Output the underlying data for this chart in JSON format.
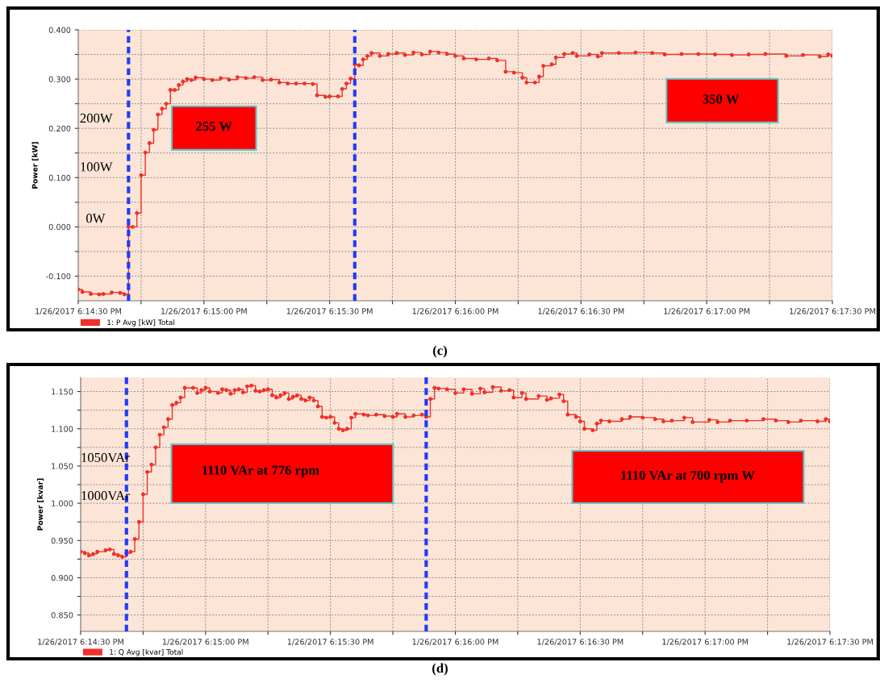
{
  "chart_data": [
    {
      "type": "step",
      "title": "(c)",
      "ylabel": "Power [kW]",
      "marker": "circle",
      "line_style": "solid",
      "grid": true,
      "legend": "bottom left",
      "xlim": [
        "2017-01-26T18:14:30",
        "2017-01-26T18:17:30"
      ],
      "xticks": [
        {
          "value": "2017-01-26T18:14:30",
          "label": "1/26/2017 6:14:30 PM"
        },
        {
          "value": "2017-01-26T18:14:45",
          "label": null
        },
        {
          "value": "2017-01-26T18:15:00",
          "label": "1/26/2017 6:15:00 PM"
        },
        {
          "value": "2017-01-26T18:15:15",
          "label": null
        },
        {
          "value": "2017-01-26T18:15:30",
          "label": "1/26/2017 6:15:30 PM"
        },
        {
          "value": "2017-01-26T18:15:45",
          "label": null
        },
        {
          "value": "2017-01-26T18:16:00",
          "label": "1/26/2017 6:16:00 PM"
        },
        {
          "value": "2017-01-26T18:16:15",
          "label": null
        },
        {
          "value": "2017-01-26T18:16:30",
          "label": "1/26/2017 6:16:30 PM"
        },
        {
          "value": "2017-01-26T18:16:45",
          "label": null
        },
        {
          "value": "2017-01-26T18:17:00",
          "label": "1/26/2017 6:17:00 PM"
        },
        {
          "value": "2017-01-26T18:17:15",
          "label": null
        },
        {
          "value": "2017-01-26T18:17:30",
          "label": "1/26/2017 6:17:30 PM"
        }
      ],
      "ylim": [
        -0.15,
        0.4
      ],
      "yticks": [
        {
          "value": -0.1,
          "label": "-0.100"
        },
        {
          "value": -0.05,
          "label": null
        },
        {
          "value": 0.0,
          "label": "0.000"
        },
        {
          "value": 0.05,
          "label": null
        },
        {
          "value": 0.1,
          "label": "0.100"
        },
        {
          "value": 0.15,
          "label": null
        },
        {
          "value": 0.2,
          "label": "0.200"
        },
        {
          "value": 0.25,
          "label": null
        },
        {
          "value": 0.3,
          "label": "0.300"
        },
        {
          "value": 0.35,
          "label": null
        },
        {
          "value": 0.4,
          "label": "0.400"
        }
      ],
      "ref_lines": [
        {
          "axis": "x",
          "value": "2017-01-26T18:14:42",
          "color": "#1f3bff",
          "line_style": "dashed"
        },
        {
          "axis": "x",
          "value": "2017-01-26T18:15:36",
          "color": "#1f3bff",
          "line_style": "dashed"
        }
      ],
      "annotations": [
        "200W",
        "100W",
        "0W",
        "255 W",
        "350 W"
      ],
      "series": [
        {
          "name": "1: P Avg [kW] Total",
          "color": "#f0302a",
          "x": [
            "2017-01-26T18:14:30",
            "2017-01-26T18:14:31",
            "2017-01-26T18:14:33",
            "2017-01-26T18:14:35",
            "2017-01-26T18:14:36",
            "2017-01-26T18:14:38",
            "2017-01-26T18:14:40",
            "2017-01-26T18:14:41",
            "2017-01-26T18:14:42",
            "2017-01-26T18:14:43",
            "2017-01-26T18:14:44",
            "2017-01-26T18:14:45",
            "2017-01-26T18:14:46",
            "2017-01-26T18:14:47",
            "2017-01-26T18:14:48",
            "2017-01-26T18:14:49",
            "2017-01-26T18:14:50",
            "2017-01-26T18:14:51",
            "2017-01-26T18:14:52",
            "2017-01-26T18:14:53",
            "2017-01-26T18:14:54",
            "2017-01-26T18:14:55",
            "2017-01-26T18:14:56",
            "2017-01-26T18:14:57",
            "2017-01-26T18:14:58",
            "2017-01-26T18:15:00",
            "2017-01-26T18:15:02",
            "2017-01-26T18:15:04",
            "2017-01-26T18:15:06",
            "2017-01-26T18:15:08",
            "2017-01-26T18:15:10",
            "2017-01-26T18:15:12",
            "2017-01-26T18:15:14",
            "2017-01-26T18:15:16",
            "2017-01-26T18:15:18",
            "2017-01-26T18:15:20",
            "2017-01-26T18:15:22",
            "2017-01-26T18:15:24",
            "2017-01-26T18:15:26",
            "2017-01-26T18:15:27",
            "2017-01-26T18:15:29",
            "2017-01-26T18:15:30",
            "2017-01-26T18:15:32",
            "2017-01-26T18:15:33",
            "2017-01-26T18:15:34",
            "2017-01-26T18:15:35",
            "2017-01-26T18:15:36",
            "2017-01-26T18:15:37",
            "2017-01-26T18:15:38",
            "2017-01-26T18:15:39",
            "2017-01-26T18:15:40",
            "2017-01-26T18:15:42",
            "2017-01-26T18:15:44",
            "2017-01-26T18:15:46",
            "2017-01-26T18:15:48",
            "2017-01-26T18:15:50",
            "2017-01-26T18:15:52",
            "2017-01-26T18:15:54",
            "2017-01-26T18:15:56",
            "2017-01-26T18:15:58",
            "2017-01-26T18:16:00",
            "2017-01-26T18:16:02",
            "2017-01-26T18:16:05",
            "2017-01-26T18:16:08",
            "2017-01-26T18:16:10",
            "2017-01-26T18:16:12",
            "2017-01-26T18:16:14",
            "2017-01-26T18:16:16",
            "2017-01-26T18:16:17",
            "2017-01-26T18:16:19",
            "2017-01-26T18:16:20",
            "2017-01-26T18:16:21",
            "2017-01-26T18:16:23",
            "2017-01-26T18:16:24",
            "2017-01-26T18:16:26",
            "2017-01-26T18:16:28",
            "2017-01-26T18:16:29",
            "2017-01-26T18:16:32",
            "2017-01-26T18:16:34",
            "2017-01-26T18:16:35",
            "2017-01-26T18:16:39",
            "2017-01-26T18:16:43",
            "2017-01-26T18:16:47",
            "2017-01-26T18:16:50",
            "2017-01-26T18:16:54",
            "2017-01-26T18:16:58",
            "2017-01-26T18:17:02",
            "2017-01-26T18:17:06",
            "2017-01-26T18:17:10",
            "2017-01-26T18:17:14",
            "2017-01-26T18:17:19",
            "2017-01-26T18:17:23",
            "2017-01-26T18:17:27",
            "2017-01-26T18:17:29",
            "2017-01-26T18:17:30"
          ],
          "values": [
            -0.127,
            -0.132,
            -0.136,
            -0.137,
            -0.136,
            -0.133,
            -0.134,
            -0.137,
            0.0,
            0.0,
            0.028,
            0.105,
            0.151,
            0.17,
            0.197,
            0.228,
            0.24,
            0.25,
            0.278,
            0.278,
            0.288,
            0.295,
            0.3,
            0.298,
            0.303,
            0.3,
            0.298,
            0.302,
            0.299,
            0.304,
            0.302,
            0.304,
            0.298,
            0.299,
            0.293,
            0.291,
            0.291,
            0.291,
            0.29,
            0.267,
            0.264,
            0.265,
            0.265,
            0.28,
            0.291,
            0.301,
            0.33,
            0.328,
            0.34,
            0.347,
            0.353,
            0.347,
            0.351,
            0.353,
            0.349,
            0.354,
            0.35,
            0.356,
            0.354,
            0.351,
            0.347,
            0.342,
            0.34,
            0.342,
            0.338,
            0.315,
            0.313,
            0.303,
            0.293,
            0.293,
            0.305,
            0.327,
            0.33,
            0.344,
            0.351,
            0.353,
            0.347,
            0.35,
            0.346,
            0.353,
            0.353,
            0.354,
            0.353,
            0.35,
            0.351,
            0.351,
            0.35,
            0.349,
            0.35,
            0.351,
            0.347,
            0.349,
            0.346,
            0.35,
            0.347
          ]
        }
      ]
    },
    {
      "type": "step",
      "title": "(d)",
      "ylabel": "Power [kvar]",
      "marker": "circle",
      "line_style": "solid",
      "grid": true,
      "legend": "bottom left",
      "xlim": [
        "2017-01-26T18:14:30",
        "2017-01-26T18:17:30"
      ],
      "xticks": [
        {
          "value": "2017-01-26T18:14:30",
          "label": "1/26/2017 6:14:30 PM"
        },
        {
          "value": "2017-01-26T18:14:45",
          "label": null
        },
        {
          "value": "2017-01-26T18:15:00",
          "label": "1/26/2017 6:15:00 PM"
        },
        {
          "value": "2017-01-26T18:15:15",
          "label": null
        },
        {
          "value": "2017-01-26T18:15:30",
          "label": "1/26/2017 6:15:30 PM"
        },
        {
          "value": "2017-01-26T18:15:45",
          "label": null
        },
        {
          "value": "2017-01-26T18:16:00",
          "label": "1/26/2017 6:16:00 PM"
        },
        {
          "value": "2017-01-26T18:16:15",
          "label": null
        },
        {
          "value": "2017-01-26T18:16:30",
          "label": "1/26/2017 6:16:30 PM"
        },
        {
          "value": "2017-01-26T18:16:45",
          "label": null
        },
        {
          "value": "2017-01-26T18:17:00",
          "label": "1/26/2017 6:17:00 PM"
        },
        {
          "value": "2017-01-26T18:17:15",
          "label": null
        },
        {
          "value": "2017-01-26T18:17:30",
          "label": "1/26/2017 6:17:30 PM"
        }
      ],
      "ylim": [
        0.828,
        1.169
      ],
      "yticks": [
        {
          "value": 0.85,
          "label": "0.850"
        },
        {
          "value": 0.875,
          "label": null
        },
        {
          "value": 0.9,
          "label": "0.900"
        },
        {
          "value": 0.925,
          "label": null
        },
        {
          "value": 0.95,
          "label": "0.950"
        },
        {
          "value": 0.975,
          "label": null
        },
        {
          "value": 1.0,
          "label": "1.000"
        },
        {
          "value": 1.025,
          "label": null
        },
        {
          "value": 1.05,
          "label": "1.050"
        },
        {
          "value": 1.075,
          "label": null
        },
        {
          "value": 1.1,
          "label": "1.100"
        },
        {
          "value": 1.125,
          "label": null
        },
        {
          "value": 1.15,
          "label": "1.150"
        }
      ],
      "ref_lines": [
        {
          "axis": "x",
          "value": "2017-01-26T18:14:41",
          "color": "#1f3bff",
          "line_style": "dashed"
        },
        {
          "axis": "x",
          "value": "2017-01-26T18:15:53",
          "color": "#1f3bff",
          "line_style": "dashed"
        }
      ],
      "annotations": [
        "1050VAr",
        "1000VAr",
        "1110 VAr at 776 rpm",
        "1110 VAr at 700 rpm W"
      ],
      "series": [
        {
          "name": "1: Q Avg [kvar] Total",
          "color": "#f0302a",
          "x": [
            "2017-01-26T18:14:30",
            "2017-01-26T18:14:31",
            "2017-01-26T18:14:32",
            "2017-01-26T18:14:33",
            "2017-01-26T18:14:34",
            "2017-01-26T18:14:36",
            "2017-01-26T18:14:37",
            "2017-01-26T18:14:38",
            "2017-01-26T18:14:39",
            "2017-01-26T18:14:40",
            "2017-01-26T18:14:41",
            "2017-01-26T18:14:42",
            "2017-01-26T18:14:43",
            "2017-01-26T18:14:44",
            "2017-01-26T18:14:45",
            "2017-01-26T18:14:46",
            "2017-01-26T18:14:47",
            "2017-01-26T18:14:48",
            "2017-01-26T18:14:49",
            "2017-01-26T18:14:50",
            "2017-01-26T18:14:51",
            "2017-01-26T18:14:52",
            "2017-01-26T18:14:53",
            "2017-01-26T18:14:54",
            "2017-01-26T18:14:55",
            "2017-01-26T18:14:57",
            "2017-01-26T18:14:58",
            "2017-01-26T18:14:59",
            "2017-01-26T18:15:00",
            "2017-01-26T18:15:01",
            "2017-01-26T18:15:03",
            "2017-01-26T18:15:04",
            "2017-01-26T18:15:05",
            "2017-01-26T18:15:06",
            "2017-01-26T18:15:07",
            "2017-01-26T18:15:08",
            "2017-01-26T18:15:09",
            "2017-01-26T18:15:10",
            "2017-01-26T18:15:11",
            "2017-01-26T18:15:12",
            "2017-01-26T18:15:13",
            "2017-01-26T18:15:14",
            "2017-01-26T18:15:15",
            "2017-01-26T18:15:16",
            "2017-01-26T18:15:17",
            "2017-01-26T18:15:18",
            "2017-01-26T18:15:19",
            "2017-01-26T18:15:20",
            "2017-01-26T18:15:21",
            "2017-01-26T18:15:22",
            "2017-01-26T18:15:23",
            "2017-01-26T18:15:24",
            "2017-01-26T18:15:25",
            "2017-01-26T18:15:26",
            "2017-01-26T18:15:27",
            "2017-01-26T18:15:28",
            "2017-01-26T18:15:29",
            "2017-01-26T18:15:30",
            "2017-01-26T18:15:31",
            "2017-01-26T18:15:32",
            "2017-01-26T18:15:33",
            "2017-01-26T18:15:34",
            "2017-01-26T18:15:35",
            "2017-01-26T18:15:36",
            "2017-01-26T18:15:38",
            "2017-01-26T18:15:39",
            "2017-01-26T18:15:41",
            "2017-01-26T18:15:43",
            "2017-01-26T18:15:45",
            "2017-01-26T18:15:46",
            "2017-01-26T18:15:48",
            "2017-01-26T18:15:50",
            "2017-01-26T18:15:52",
            "2017-01-26T18:15:53",
            "2017-01-26T18:15:54",
            "2017-01-26T18:15:55",
            "2017-01-26T18:15:56",
            "2017-01-26T18:15:58",
            "2017-01-26T18:16:00",
            "2017-01-26T18:16:02",
            "2017-01-26T18:16:04",
            "2017-01-26T18:16:06",
            "2017-01-26T18:16:07",
            "2017-01-26T18:16:09",
            "2017-01-26T18:16:11",
            "2017-01-26T18:16:13",
            "2017-01-26T18:16:14",
            "2017-01-26T18:16:16",
            "2017-01-26T18:16:17",
            "2017-01-26T18:16:20",
            "2017-01-26T18:16:22",
            "2017-01-26T18:16:23",
            "2017-01-26T18:16:25",
            "2017-01-26T18:16:26",
            "2017-01-26T18:16:27",
            "2017-01-26T18:16:29",
            "2017-01-26T18:16:30",
            "2017-01-26T18:16:31",
            "2017-01-26T18:16:33",
            "2017-01-26T18:16:34",
            "2017-01-26T18:16:35",
            "2017-01-26T18:16:37",
            "2017-01-26T18:16:40",
            "2017-01-26T18:16:42",
            "2017-01-26T18:16:45",
            "2017-01-26T18:16:48",
            "2017-01-26T18:16:50",
            "2017-01-26T18:16:52",
            "2017-01-26T18:16:55",
            "2017-01-26T18:16:57",
            "2017-01-26T18:17:01",
            "2017-01-26T18:17:03",
            "2017-01-26T18:17:06",
            "2017-01-26T18:17:10",
            "2017-01-26T18:17:14",
            "2017-01-26T18:17:17",
            "2017-01-26T18:17:20",
            "2017-01-26T18:17:23",
            "2017-01-26T18:17:27",
            "2017-01-26T18:17:29",
            "2017-01-26T18:17:30"
          ],
          "values": [
            0.935,
            0.933,
            0.93,
            0.932,
            0.935,
            0.937,
            0.938,
            0.932,
            0.93,
            0.928,
            0.933,
            0.935,
            0.952,
            0.975,
            1.012,
            1.042,
            1.052,
            1.075,
            1.092,
            1.102,
            1.113,
            1.132,
            1.135,
            1.142,
            1.155,
            1.155,
            1.148,
            1.152,
            1.155,
            1.15,
            1.148,
            1.153,
            1.152,
            1.147,
            1.152,
            1.153,
            1.149,
            1.157,
            1.158,
            1.151,
            1.15,
            1.152,
            1.153,
            1.145,
            1.142,
            1.145,
            1.148,
            1.14,
            1.143,
            1.145,
            1.14,
            1.138,
            1.142,
            1.138,
            1.13,
            1.116,
            1.115,
            1.116,
            1.108,
            1.1,
            1.098,
            1.1,
            1.115,
            1.12,
            1.119,
            1.118,
            1.119,
            1.117,
            1.116,
            1.12,
            1.116,
            1.118,
            1.119,
            1.116,
            1.14,
            1.155,
            1.154,
            1.153,
            1.148,
            1.153,
            1.147,
            1.154,
            1.149,
            1.156,
            1.151,
            1.152,
            1.142,
            1.148,
            1.14,
            1.144,
            1.139,
            1.141,
            1.146,
            1.137,
            1.119,
            1.116,
            1.11,
            1.1,
            1.098,
            1.107,
            1.111,
            1.11,
            1.113,
            1.116,
            1.115,
            1.113,
            1.11,
            1.111,
            1.115,
            1.109,
            1.112,
            1.109,
            1.111,
            1.111,
            1.113,
            1.111,
            1.109,
            1.111,
            1.11,
            1.113,
            1.11
          ]
        }
      ]
    }
  ]
}
